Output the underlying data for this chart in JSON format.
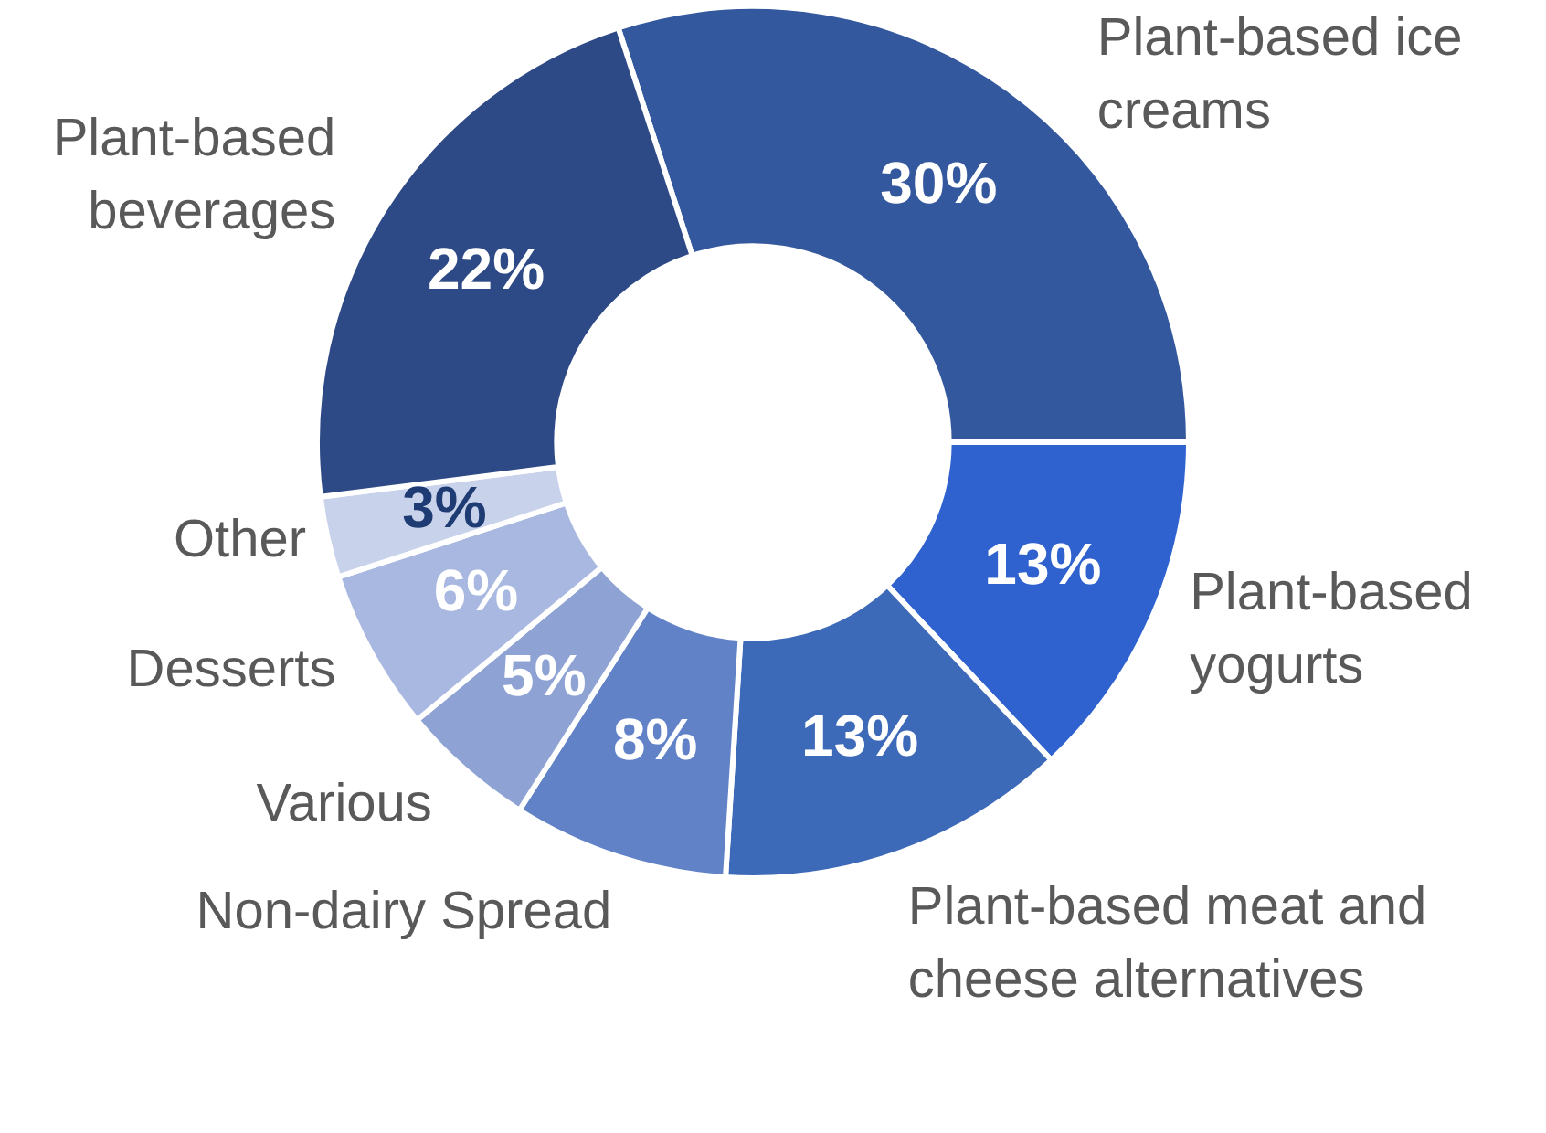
{
  "chart_data": {
    "type": "donut",
    "categories": [
      "Plant-based ice creams",
      "Plant-based yogurts",
      "Plant-based meat and cheese alternatives",
      "Non-dairy Spread",
      "Various",
      "Desserts",
      "Other",
      "Plant-based beverages"
    ],
    "values": [
      30,
      13,
      13,
      8,
      5,
      6,
      3,
      22
    ],
    "colors": [
      "#34589e",
      "#2f62cf",
      "#3d6ab8",
      "#6282c8",
      "#8ea2d4",
      "#a9b8e0",
      "#c8d2ea",
      "#2e4a86"
    ],
    "value_labels": [
      "30%",
      "13%",
      "13%",
      "8%",
      "5%",
      "6%",
      "3%",
      "22%"
    ],
    "legend": false
  }
}
